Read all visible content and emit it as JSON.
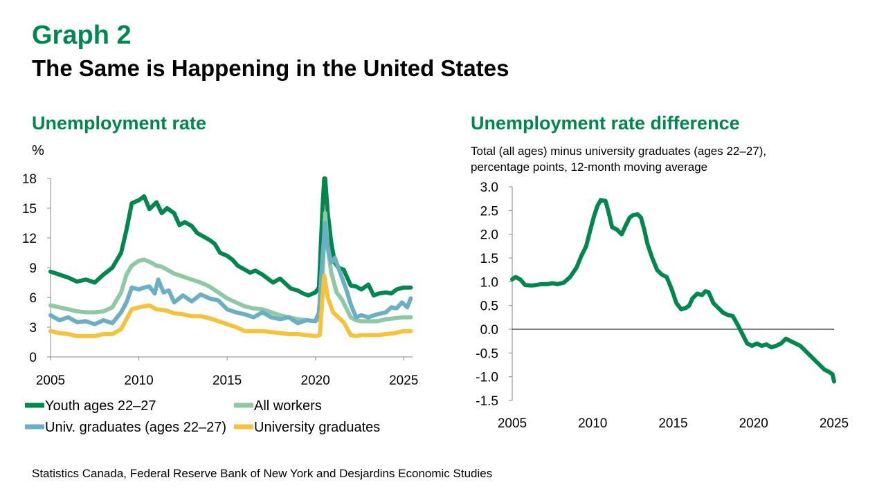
{
  "header": {
    "graph_label": "Graph 2",
    "title": "The Same is Happening in the United States"
  },
  "source": "Statistics Canada, Federal Reserve Bank of New York and Desjardins Economic Studies",
  "chart_data": [
    {
      "type": "line",
      "title": "Unemployment rate",
      "ylabel": "%",
      "xlim": [
        2005,
        2025.5
      ],
      "ylim": [
        0,
        18
      ],
      "x_ticks": [
        "2005",
        "2010",
        "2015",
        "2020",
        "2025"
      ],
      "y_ticks": [
        "0",
        "3",
        "6",
        "9",
        "12",
        "15",
        "18"
      ],
      "grid": false,
      "legend": "bottom",
      "series": [
        {
          "name": "Youth ages 22–27",
          "color": "#00874e",
          "x": [
            2005.0,
            2005.5,
            2006.0,
            2006.5,
            2007.0,
            2007.5,
            2008.0,
            2008.5,
            2009.0,
            2009.3,
            2009.6,
            2010.0,
            2010.3,
            2010.6,
            2011.0,
            2011.3,
            2011.6,
            2012.0,
            2012.3,
            2012.6,
            2013.0,
            2013.3,
            2013.6,
            2014.0,
            2014.3,
            2014.6,
            2015.0,
            2015.3,
            2015.6,
            2016.0,
            2016.3,
            2016.6,
            2017.0,
            2017.3,
            2017.6,
            2018.0,
            2018.3,
            2018.6,
            2019.0,
            2019.3,
            2019.6,
            2020.0,
            2020.2,
            2020.4,
            2020.5,
            2020.55,
            2020.7,
            2020.9,
            2021.1,
            2021.3,
            2021.6,
            2022.0,
            2022.3,
            2022.6,
            2023.0,
            2023.3,
            2023.6,
            2024.0,
            2024.3,
            2024.6,
            2025.0,
            2025.4
          ],
          "y": [
            8.6,
            8.3,
            8.0,
            7.6,
            7.8,
            7.5,
            8.3,
            9.0,
            10.5,
            12.8,
            15.5,
            15.8,
            16.2,
            14.9,
            15.6,
            14.5,
            15.0,
            14.5,
            13.3,
            13.6,
            13.2,
            12.5,
            12.2,
            11.8,
            11.4,
            10.5,
            10.2,
            9.8,
            9.2,
            8.8,
            8.5,
            8.7,
            8.3,
            7.9,
            7.5,
            7.9,
            7.4,
            6.9,
            6.7,
            6.4,
            6.2,
            6.5,
            7.0,
            15.0,
            18.0,
            18.0,
            14.5,
            11.5,
            9.5,
            9.0,
            8.8,
            7.2,
            7.1,
            6.8,
            7.3,
            6.2,
            6.4,
            6.5,
            6.4,
            6.8,
            7.0,
            7.0
          ]
        },
        {
          "name": "All workers",
          "color": "#8ec9a4",
          "x": [
            2005.0,
            2005.5,
            2006.0,
            2006.5,
            2007.0,
            2007.5,
            2008.0,
            2008.5,
            2009.0,
            2009.3,
            2009.6,
            2010.0,
            2010.3,
            2010.6,
            2011.0,
            2011.3,
            2011.6,
            2012.0,
            2012.5,
            2013.0,
            2013.5,
            2014.0,
            2014.5,
            2015.0,
            2015.5,
            2016.0,
            2016.5,
            2017.0,
            2017.5,
            2018.0,
            2018.5,
            2019.0,
            2019.5,
            2020.0,
            2020.3,
            2020.45,
            2020.55,
            2020.7,
            2020.9,
            2021.2,
            2021.5,
            2022.0,
            2022.3,
            2022.6,
            2023.0,
            2023.5,
            2024.0,
            2024.5,
            2025.0,
            2025.4
          ],
          "y": [
            5.2,
            5.0,
            4.8,
            4.6,
            4.5,
            4.5,
            4.6,
            5.0,
            6.5,
            8.3,
            9.2,
            9.7,
            9.8,
            9.6,
            9.2,
            9.1,
            8.8,
            8.4,
            8.1,
            7.8,
            7.5,
            7.1,
            6.5,
            5.9,
            5.5,
            5.1,
            4.9,
            4.8,
            4.5,
            4.2,
            4.0,
            3.8,
            3.7,
            3.6,
            4.0,
            10.0,
            14.5,
            11.0,
            8.5,
            6.5,
            5.8,
            4.0,
            3.7,
            3.6,
            3.6,
            3.6,
            3.8,
            3.9,
            4.0,
            4.0
          ]
        },
        {
          "name": "Univ. graduates (ages 22–27)",
          "color": "#6aafc3",
          "x": [
            2005.0,
            2005.5,
            2006.0,
            2006.5,
            2007.0,
            2007.5,
            2008.0,
            2008.5,
            2009.0,
            2009.3,
            2009.6,
            2010.0,
            2010.3,
            2010.6,
            2010.9,
            2011.1,
            2011.4,
            2011.7,
            2012.0,
            2012.5,
            2013.0,
            2013.5,
            2014.0,
            2014.5,
            2015.0,
            2015.5,
            2016.0,
            2016.5,
            2017.0,
            2017.5,
            2018.0,
            2018.5,
            2019.0,
            2019.5,
            2020.0,
            2020.2,
            2020.4,
            2020.55,
            2020.7,
            2020.9,
            2021.1,
            2021.3,
            2021.5,
            2021.8,
            2022.0,
            2022.3,
            2022.6,
            2023.0,
            2023.5,
            2024.0,
            2024.3,
            2024.6,
            2024.9,
            2025.2,
            2025.4
          ],
          "y": [
            4.2,
            3.7,
            4.0,
            3.5,
            3.6,
            3.3,
            3.7,
            3.4,
            4.5,
            5.5,
            7.0,
            6.8,
            7.0,
            7.1,
            6.4,
            7.8,
            6.5,
            6.7,
            5.5,
            6.2,
            5.6,
            6.3,
            5.9,
            5.7,
            4.8,
            4.5,
            4.3,
            4.0,
            4.5,
            4.0,
            3.8,
            4.0,
            3.4,
            3.7,
            3.6,
            4.5,
            10.0,
            13.5,
            11.0,
            9.5,
            10.0,
            9.0,
            8.0,
            6.5,
            5.3,
            4.0,
            4.2,
            4.0,
            4.3,
            4.5,
            5.0,
            4.9,
            5.5,
            5.0,
            5.9
          ]
        },
        {
          "name": "University graduates",
          "color": "#f5c33b",
          "x": [
            2005.0,
            2005.5,
            2006.0,
            2006.5,
            2007.0,
            2007.5,
            2008.0,
            2008.5,
            2009.0,
            2009.3,
            2009.6,
            2010.0,
            2010.3,
            2010.6,
            2011.0,
            2011.5,
            2012.0,
            2012.5,
            2013.0,
            2013.5,
            2014.0,
            2014.5,
            2015.0,
            2015.5,
            2016.0,
            2016.5,
            2017.0,
            2017.5,
            2018.0,
            2018.5,
            2019.0,
            2019.5,
            2020.0,
            2020.25,
            2020.4,
            2020.5,
            2020.7,
            2021.0,
            2021.3,
            2021.6,
            2022.0,
            2022.3,
            2022.6,
            2023.0,
            2023.5,
            2024.0,
            2024.5,
            2025.0,
            2025.4
          ],
          "y": [
            2.6,
            2.4,
            2.3,
            2.1,
            2.1,
            2.1,
            2.3,
            2.3,
            2.8,
            3.8,
            4.8,
            5.0,
            5.1,
            5.2,
            4.8,
            4.7,
            4.4,
            4.3,
            4.1,
            4.1,
            3.9,
            3.6,
            3.3,
            3.0,
            2.6,
            2.6,
            2.6,
            2.5,
            2.4,
            2.3,
            2.3,
            2.2,
            2.1,
            2.2,
            6.0,
            8.2,
            6.0,
            4.5,
            4.0,
            3.5,
            2.2,
            2.1,
            2.2,
            2.2,
            2.2,
            2.3,
            2.4,
            2.6,
            2.6
          ]
        }
      ]
    },
    {
      "type": "line",
      "title": "Unemployment rate difference",
      "subtitle_line1": "Total (all ages) minus university graduates (ages 22–27),",
      "subtitle_line2": "percentage points, 12-month moving average",
      "xlim": [
        2005,
        2025
      ],
      "ylim": [
        -1.5,
        3.0
      ],
      "x_ticks": [
        "2005",
        "2010",
        "2015",
        "2020",
        "2025"
      ],
      "y_ticks": [
        "3.0",
        "2.5",
        "2.0",
        "1.5",
        "1.0",
        "0.5",
        "0.0",
        "-0.5",
        "-1.0",
        "-1.5"
      ],
      "grid": false,
      "series": [
        {
          "color": "#00874e",
          "x": [
            2005.0,
            2005.2,
            2005.5,
            2005.8,
            2006.2,
            2006.5,
            2006.8,
            2007.2,
            2007.5,
            2007.8,
            2008.2,
            2008.6,
            2009.0,
            2009.3,
            2009.6,
            2009.9,
            2010.1,
            2010.3,
            2010.5,
            2010.8,
            2011.0,
            2011.2,
            2011.5,
            2011.8,
            2012.0,
            2012.3,
            2012.5,
            2012.8,
            2013.0,
            2013.2,
            2013.4,
            2013.7,
            2014.0,
            2014.3,
            2014.6,
            2014.9,
            2015.2,
            2015.5,
            2015.8,
            2016.0,
            2016.2,
            2016.5,
            2016.8,
            2017.0,
            2017.2,
            2017.5,
            2017.8,
            2018.1,
            2018.4,
            2018.7,
            2019.0,
            2019.3,
            2019.6,
            2019.9,
            2020.2,
            2020.5,
            2020.8,
            2021.1,
            2021.4,
            2021.7,
            2022.0,
            2022.3,
            2022.6,
            2022.9,
            2023.2,
            2023.5,
            2023.8,
            2024.1,
            2024.4,
            2024.7,
            2024.9,
            2025.0
          ],
          "y": [
            1.05,
            1.1,
            1.05,
            0.93,
            0.92,
            0.93,
            0.95,
            0.95,
            0.97,
            0.95,
            0.98,
            1.1,
            1.3,
            1.55,
            1.75,
            2.15,
            2.4,
            2.6,
            2.72,
            2.7,
            2.45,
            2.15,
            2.1,
            2.0,
            2.15,
            2.35,
            2.4,
            2.42,
            2.35,
            2.1,
            1.8,
            1.5,
            1.25,
            1.15,
            1.1,
            0.85,
            0.55,
            0.42,
            0.45,
            0.5,
            0.65,
            0.75,
            0.72,
            0.8,
            0.78,
            0.55,
            0.45,
            0.35,
            0.3,
            0.28,
            0.1,
            -0.1,
            -0.3,
            -0.35,
            -0.3,
            -0.35,
            -0.32,
            -0.38,
            -0.35,
            -0.3,
            -0.2,
            -0.25,
            -0.3,
            -0.35,
            -0.45,
            -0.55,
            -0.65,
            -0.75,
            -0.85,
            -0.9,
            -0.95,
            -1.1
          ]
        }
      ]
    }
  ]
}
